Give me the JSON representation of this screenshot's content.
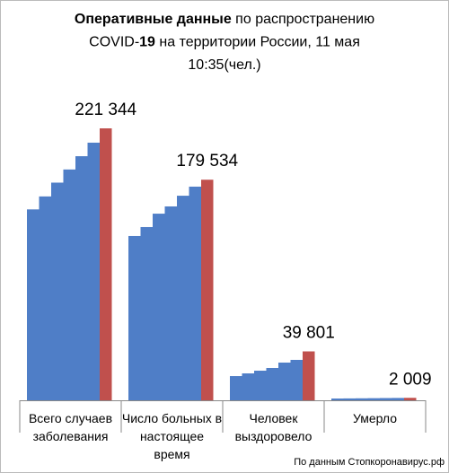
{
  "chart_data": {
    "type": "bar",
    "title": [
      [
        {
          "text": "Оперативные данные",
          "bold": true
        },
        {
          "text": " по распространению",
          "bold": false
        }
      ],
      [
        {
          "text": "COVID-",
          "bold": false
        },
        {
          "text": "19",
          "bold": true
        },
        {
          "text": " на территории России, 11 мая",
          "bold": false
        }
      ],
      [
        {
          "text": "10:35(чел.)",
          "bold": false
        }
      ]
    ],
    "categories": [
      "Всего случаев заболевания",
      "Число больных в настоящее время",
      "Человек выздоровело",
      "Умерло"
    ],
    "series": [
      {
        "color": "#4f7ec7",
        "values": [
          155370,
          133700,
          19700,
          1451
        ]
      },
      {
        "color": "#4f7ec7",
        "values": [
          165929,
          141000,
          21900,
          1537
        ]
      },
      {
        "color": "#4f7ec7",
        "values": [
          177160,
          151900,
          24100,
          1625
        ]
      },
      {
        "color": "#4f7ec7",
        "values": [
          187859,
          157800,
          26300,
          1723
        ]
      },
      {
        "color": "#4f7ec7",
        "values": [
          198676,
          166500,
          30700,
          1827
        ]
      },
      {
        "color": "#4f7ec7",
        "values": [
          209688,
          173900,
          32900,
          1915
        ]
      },
      {
        "color": "#c0504d",
        "values": [
          221344,
          179534,
          39801,
          2009
        ],
        "value_labels": [
          "221 344",
          "179 534",
          "39 801",
          "2 009"
        ]
      }
    ],
    "source": "По данным Стопкоронавирус.рф"
  }
}
